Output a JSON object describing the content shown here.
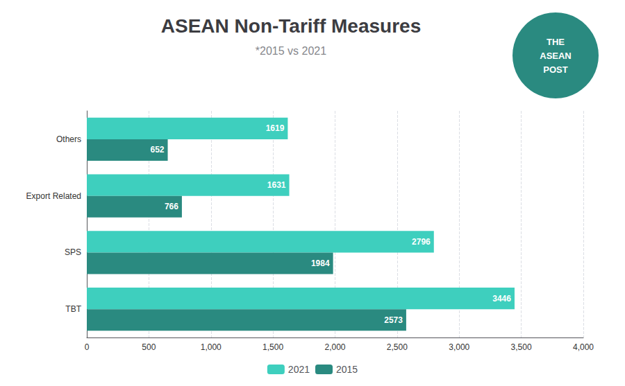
{
  "chart_data": {
    "type": "bar",
    "orientation": "horizontal",
    "title": "ASEAN Non-Tariff Measures",
    "subtitle": "*2015 vs 2021",
    "categories": [
      "TBT",
      "SPS",
      "Export Related",
      "Others"
    ],
    "series": [
      {
        "name": "2021",
        "color": "#3ecfbe",
        "values": [
          3446,
          2796,
          1631,
          1619
        ]
      },
      {
        "name": "2015",
        "color": "#2a8a80",
        "values": [
          2573,
          1984,
          766,
          652
        ]
      }
    ],
    "xlim": [
      0,
      4000
    ],
    "xticks": [
      0,
      500,
      1000,
      1500,
      2000,
      2500,
      3000,
      3500,
      4000
    ],
    "grid": true,
    "legend": "bottom",
    "data_labels": true,
    "annotations": [
      "THE",
      "ASEAN",
      "POST"
    ]
  }
}
